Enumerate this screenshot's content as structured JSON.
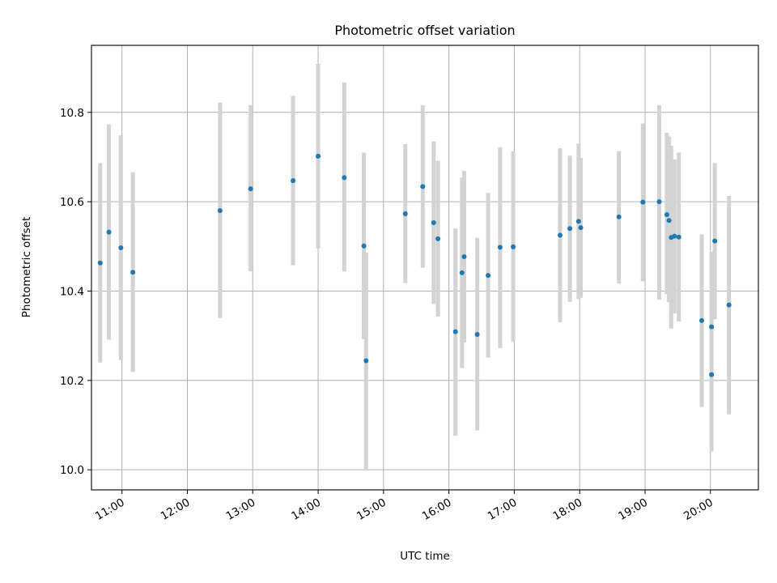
{
  "chart_data": {
    "type": "scatter",
    "title": "Photometric offset variation",
    "xlabel": "UTC time",
    "ylabel": "Photometric offset",
    "x_ticks": [
      "11:00",
      "12:00",
      "13:00",
      "14:00",
      "15:00",
      "16:00",
      "17:00",
      "18:00",
      "19:00",
      "20:00"
    ],
    "y_ticks": [
      "10.0",
      "10.2",
      "10.4",
      "10.6",
      "10.8"
    ],
    "xlim": [
      "10:32",
      "20:44"
    ],
    "ylim": [
      9.955,
      10.95
    ],
    "grid": true,
    "point_color": "#1f77b4",
    "errorbar_color": "#d3d3d3",
    "points": [
      {
        "x": "10:40",
        "y": 10.463,
        "ylow": 10.24,
        "yhigh": 10.686
      },
      {
        "x": "10:48",
        "y": 10.532,
        "ylow": 10.291,
        "yhigh": 10.773
      },
      {
        "x": "10:59",
        "y": 10.497,
        "ylow": 10.246,
        "yhigh": 10.749
      },
      {
        "x": "11:10",
        "y": 10.442,
        "ylow": 10.219,
        "yhigh": 10.666
      },
      {
        "x": "12:30",
        "y": 10.58,
        "ylow": 10.34,
        "yhigh": 10.822
      },
      {
        "x": "12:58",
        "y": 10.629,
        "ylow": 10.444,
        "yhigh": 10.816
      },
      {
        "x": "13:37",
        "y": 10.647,
        "ylow": 10.458,
        "yhigh": 10.837
      },
      {
        "x": "14:00",
        "y": 10.702,
        "ylow": 10.495,
        "yhigh": 10.908
      },
      {
        "x": "14:24",
        "y": 10.654,
        "ylow": 10.444,
        "yhigh": 10.867
      },
      {
        "x": "14:42",
        "y": 10.501,
        "ylow": 10.292,
        "yhigh": 10.71
      },
      {
        "x": "14:44",
        "y": 10.244,
        "ylow": 10.002,
        "yhigh": 10.486
      },
      {
        "x": "15:20",
        "y": 10.573,
        "ylow": 10.418,
        "yhigh": 10.729
      },
      {
        "x": "15:36",
        "y": 10.634,
        "ylow": 10.452,
        "yhigh": 10.816
      },
      {
        "x": "15:46",
        "y": 10.553,
        "ylow": 10.371,
        "yhigh": 10.735
      },
      {
        "x": "15:50",
        "y": 10.517,
        "ylow": 10.343,
        "yhigh": 10.692
      },
      {
        "x": "16:06",
        "y": 10.309,
        "ylow": 10.076,
        "yhigh": 10.54
      },
      {
        "x": "16:12",
        "y": 10.441,
        "ylow": 10.228,
        "yhigh": 10.654
      },
      {
        "x": "16:14",
        "y": 10.477,
        "ylow": 10.285,
        "yhigh": 10.669
      },
      {
        "x": "16:26",
        "y": 10.303,
        "ylow": 10.088,
        "yhigh": 10.519
      },
      {
        "x": "16:36",
        "y": 10.435,
        "ylow": 10.251,
        "yhigh": 10.62
      },
      {
        "x": "16:47",
        "y": 10.498,
        "ylow": 10.272,
        "yhigh": 10.722
      },
      {
        "x": "16:59",
        "y": 10.499,
        "ylow": 10.287,
        "yhigh": 10.713
      },
      {
        "x": "17:42",
        "y": 10.525,
        "ylow": 10.33,
        "yhigh": 10.72
      },
      {
        "x": "17:51",
        "y": 10.54,
        "ylow": 10.376,
        "yhigh": 10.703
      },
      {
        "x": "17:59",
        "y": 10.556,
        "ylow": 10.382,
        "yhigh": 10.73
      },
      {
        "x": "18:01",
        "y": 10.542,
        "ylow": 10.385,
        "yhigh": 10.698
      },
      {
        "x": "18:36",
        "y": 10.566,
        "ylow": 10.417,
        "yhigh": 10.713
      },
      {
        "x": "18:58",
        "y": 10.599,
        "ylow": 10.422,
        "yhigh": 10.775
      },
      {
        "x": "19:13",
        "y": 10.6,
        "ylow": 10.381,
        "yhigh": 10.816
      },
      {
        "x": "19:20",
        "y": 10.571,
        "ylow": 10.393,
        "yhigh": 10.754
      },
      {
        "x": "19:22",
        "y": 10.558,
        "ylow": 10.375,
        "yhigh": 10.746
      },
      {
        "x": "19:24",
        "y": 10.52,
        "ylow": 10.316,
        "yhigh": 10.725
      },
      {
        "x": "19:27",
        "y": 10.523,
        "ylow": 10.35,
        "yhigh": 10.695
      },
      {
        "x": "19:31",
        "y": 10.521,
        "ylow": 10.332,
        "yhigh": 10.71
      },
      {
        "x": "19:52",
        "y": 10.334,
        "ylow": 10.141,
        "yhigh": 10.527
      },
      {
        "x": "20:01",
        "y": 10.32,
        "ylow": 10.152,
        "yhigh": 10.488
      },
      {
        "x": "20:01",
        "y": 10.213,
        "ylow": 10.041,
        "yhigh": 10.385
      },
      {
        "x": "20:04",
        "y": 10.512,
        "ylow": 10.337,
        "yhigh": 10.686
      },
      {
        "x": "20:17",
        "y": 10.369,
        "ylow": 10.124,
        "yhigh": 10.613
      }
    ]
  }
}
